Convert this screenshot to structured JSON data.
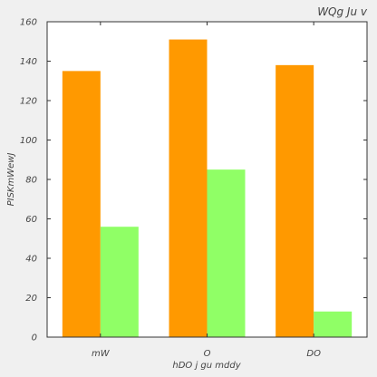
{
  "chart_data": {
    "type": "bar",
    "title": "WQg Ju v",
    "xlabel": "hDO j  gu mddy",
    "ylabel": "PISKmWewJ",
    "categories": [
      "mW",
      "O",
      "DO"
    ],
    "series": [
      {
        "values": [
          135,
          151,
          138
        ],
        "color": "#ff9900"
      },
      {
        "values": [
          56,
          85,
          13
        ],
        "color": "#90ff66"
      }
    ],
    "ylim": [
      0,
      160
    ],
    "yticks": [
      0,
      20,
      40,
      60,
      80,
      100,
      120,
      140,
      160
    ],
    "ytick_labels": [
      "0",
      "20",
      "40",
      "60",
      "80",
      "100",
      "120",
      "140",
      "160"
    ],
    "grid": false
  },
  "colors": {
    "background": "#f0f0f0",
    "plot_area": "#ffffff",
    "axis": "#333333",
    "text": "#444444"
  }
}
